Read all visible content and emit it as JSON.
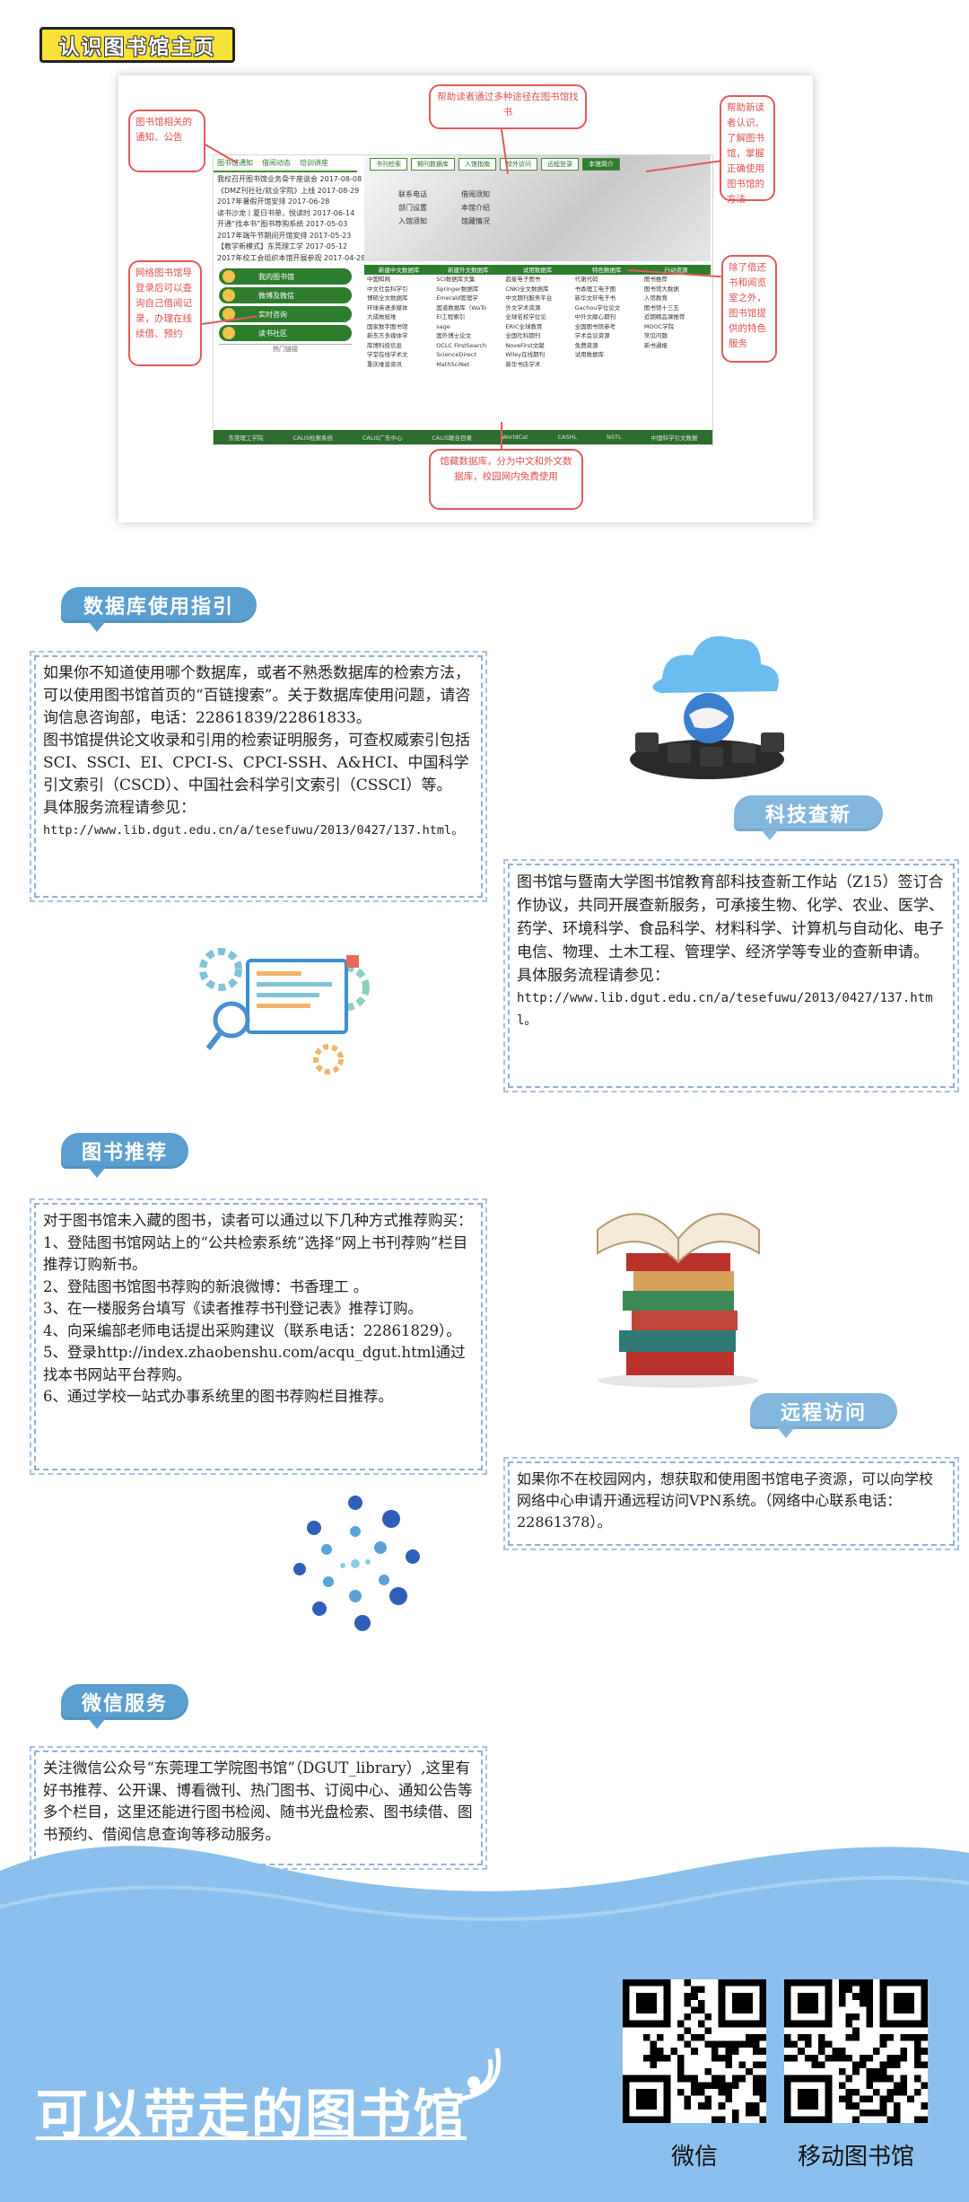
{
  "header": {
    "title": "认识图书馆主页"
  },
  "site": {
    "news_tabs": [
      "图书馆通知",
      "借阅动态",
      "培训讲座"
    ],
    "news": [
      "我校召开图书馆业务骨干座谈会 2017-08-08",
      "《DMZ刊社社/就业学院》上线 2017-08-29",
      "2017年暑假开馆安排 2017-06-28",
      "读书沙龙丨夏日书单，悦读时 2017-06-14",
      "开通“找本书”图书荐购系统 2017-05-03",
      "2017年端午节期间开馆安排 2017-05-23",
      "【教学新模式】东莞理工学 2017-05-12",
      "2017年校工会组织本馆开展参观 2017-04-28"
    ],
    "services": [
      "我的图书馆",
      "微博及微信",
      "实时咨询",
      "读书社区"
    ],
    "hot_label": "热门链接",
    "banner_tabs": [
      "书刊检索",
      "期刊数据库",
      "入馆指南",
      "校外访问",
      "远程登录",
      "本馆简介"
    ],
    "banner_links": [
      "联系电话",
      "借阅须知",
      "部门设置",
      "本馆介绍",
      "入馆须知",
      "馆藏情况"
    ],
    "res_head": [
      "新建中文数据库",
      "新建外文数据库",
      "试用数据库",
      "特色数据库",
      "行动资源"
    ],
    "res_cols": [
      [
        "中国知网",
        "中文社会科学引",
        "博硕全文数据库",
        "环球英语多媒体",
        "大成故纸堆",
        "国家数字图书馆",
        "新东方多媒体学",
        "库博科技信息",
        "学堂在线学术文",
        "重庆维普资讯"
      ],
      [
        "SCI数据库文集",
        "Springer数据库",
        "Emerald管理学",
        "国道数据库（WaTo",
        "EI工程索引",
        "sage",
        "国外博士论文",
        "OCLC FirstSearch",
        "ScienceDirect",
        "MathSciNet"
      ],
      [
        "超星电子图书",
        "CNKI全文数据库",
        "中文期刊服务平台",
        "外文学术资源",
        "全球名校学位论",
        "ERIC全球教育",
        "全国社科期刊",
        "NoveFirst文献",
        "Wiley在线期刊",
        "新华书店学术"
      ],
      [
        "代谢代码",
        "书香理工电子图",
        "新华文轩电子书",
        "Gachou学位论文",
        "中外文献心期刊",
        "全国图书馆参考",
        "学术会议资源",
        "免费资源",
        "试用数据库"
      ],
      [
        "图书推荐",
        "图书馆大数据",
        "入馆教育",
        "图书馆十三五",
        "近期精品课推荐",
        "MOOC学院",
        "常见问题",
        "新书通报"
      ]
    ],
    "footer": [
      "东莞理工学院",
      "CALIS检索系统",
      "CALIS广东中心",
      "CALIS联合目录",
      "WorldCat",
      "CASHL",
      "NSTL",
      "中国科学引文数据"
    ]
  },
  "callouts": [
    "图书馆相关的通知、公告",
    "帮助读者通过多种途径在图书馆找书",
    "帮助新读者认识、了解图书馆，掌握正确使用图书馆的方法",
    "网络图书馆导登录后可以查询自己借阅记录，办理在线续借、预约",
    "除了借还书和阅览室之外，图书馆提供的特色服务",
    "馆藏数据库，分为中文和外文数据库，校园网内免费使用"
  ],
  "sections": {
    "db": {
      "title": "数据库使用指引",
      "text": "如果你不知道使用哪个数据库，或者不熟悉数据库的检索方法，可以使用图书馆首页的“百链搜索”。关于数据库使用问题，请咨询信息咨询部，电话：22861839/22861833。\n图书馆提供论文收录和引用的检索证明服务，可查权威索引包括SCI、SSCI、EI、CPCI-S、CPCI-SSH、A&HCI、中国科学引文索引（CSCD）、中国社会科学引文索引（CSSCI）等。\n具体服务流程请参见：",
      "url": "http://www.lib.dgut.edu.cn/a/tesefuwu/2013/0427/137.html。"
    },
    "sci": {
      "title": "科技查新",
      "text": "图书馆与暨南大学图书馆教育部科技查新工作站（Z15）签订合作协议，共同开展查新服务，可承接生物、化学、农业、医学、药学、环境科学、食品科学、材料科学、计算机与自动化、电子电信、物理、土木工程、管理学、经济学等专业的查新申请。\n具体服务流程请参见：",
      "url": "http://www.lib.dgut.edu.cn/a/tesefuwu/2013/0427/137.html。"
    },
    "rec": {
      "title": "图书推荐",
      "text": "对于图书馆未入藏的图书，读者可以通过以下几种方式推荐购买：\n1、登陆图书馆网站上的“公共检索系统”选择“网上书刊荐购”栏目推荐订购新书。\n2、登陆图书馆图书荐购的新浪微博：书香理工 。\n3、在一楼服务台填写《读者推荐书刊登记表》推荐订购。\n4、向采编部老师电话提出采购建议（联系电话：22861829）。\n5、登录http://index.zhaobenshu.com/acqu_dgut.html通过找本书网站平台荐购。\n6、通过学校一站式办事系统里的图书荐购栏目推荐。"
    },
    "remote": {
      "title": "远程访问",
      "text": "如果你不在校园网内，想获取和使用图书馆电子资源，可以向学校网络中心申请开通远程访问VPN系统。（网络中心联系电话：22861378）。"
    },
    "wechat": {
      "title": "微信服务",
      "text": "关注微信公众号“东莞理工学院图书馆”（DGUT_library）,这里有好书推荐、公开课、博看微刊、热门图书、订阅中心、通知公告等多个栏目，这里还能进行图书检阅、随书光盘检索、图书续借、图书预约、借阅信息查询等移动服务。"
    }
  },
  "bottom": {
    "title": "可以带走的图书馆",
    "qr1_label": "微信",
    "qr2_label": "移动图书馆"
  },
  "colors": {
    "accent": "#5b9fd1",
    "callout": "#e25a5a",
    "site_green": "#2d7d2d",
    "bottom_blue": "#8cc0ec"
  }
}
